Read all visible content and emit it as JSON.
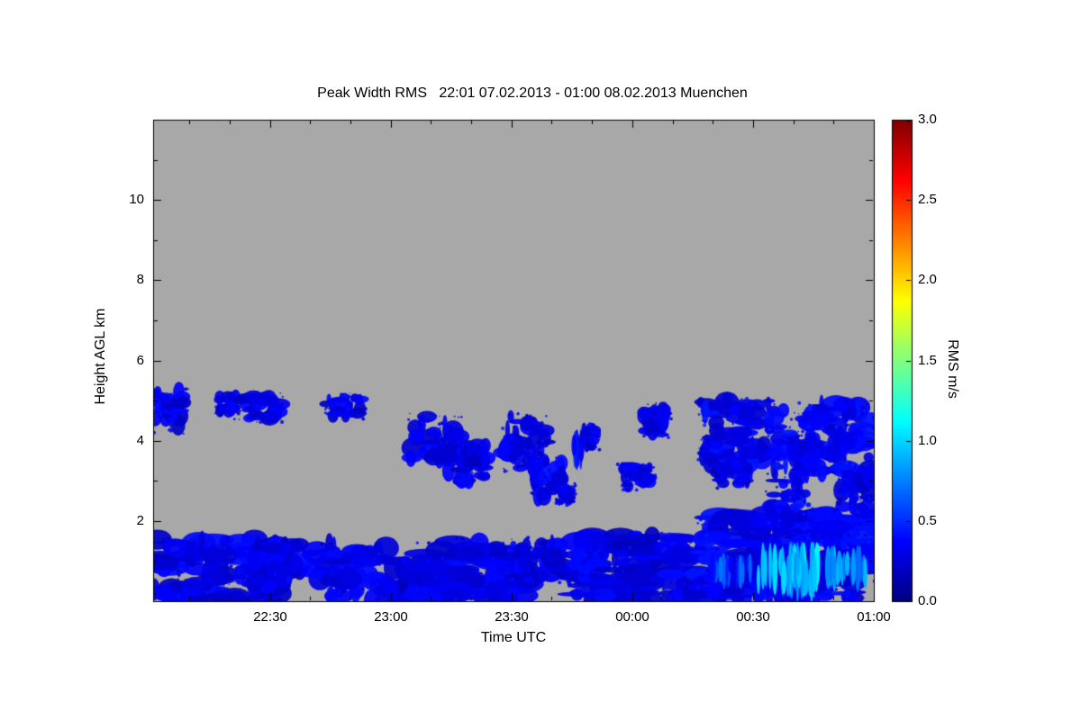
{
  "chart_data": {
    "type": "heatmap",
    "title": "Peak Width RMS   22:01 07.02.2013 - 01:00 08.02.2013 Muenchen",
    "xlabel": "Time UTC",
    "ylabel": "Height AGL km",
    "colorbar_label": "RMS m/s",
    "colormap": "jet",
    "value_units": "m/s",
    "value_range": [
      0.0,
      3.0
    ],
    "time_start": "22:01 07.02.2013",
    "time_end": "01:00 08.02.2013",
    "location": "Muenchen",
    "x_range_minutes": [
      0,
      179
    ],
    "y_range_km": [
      0,
      12
    ],
    "background_no_data_color": "#a8a8a8",
    "grid": false,
    "legend_position": "right-colorbar",
    "x_ticks": [
      {
        "label": "22:30",
        "minutes": 29
      },
      {
        "label": "23:00",
        "minutes": 59
      },
      {
        "label": "23:30",
        "minutes": 89
      },
      {
        "label": "00:00",
        "minutes": 119
      },
      {
        "label": "00:30",
        "minutes": 149
      },
      {
        "label": "01:00",
        "minutes": 179
      }
    ],
    "x_minor_tick_step_minutes": 10,
    "y_ticks": [
      {
        "label": "2",
        "km": 2
      },
      {
        "label": "4",
        "km": 4
      },
      {
        "label": "6",
        "km": 6
      },
      {
        "label": "8",
        "km": 8
      },
      {
        "label": "10",
        "km": 10
      }
    ],
    "y_minor_tick_step_km": 1,
    "colorbar_ticks": [
      {
        "label": "0.0",
        "value": 0.0
      },
      {
        "label": "0.5",
        "value": 0.5
      },
      {
        "label": "1.0",
        "value": 1.0
      },
      {
        "label": "1.5",
        "value": 1.5
      },
      {
        "label": "2.0",
        "value": 2.0
      },
      {
        "label": "2.5",
        "value": 2.5
      },
      {
        "label": "3.0",
        "value": 3.0
      }
    ],
    "features": [
      {
        "t0": 0,
        "t1": 31,
        "h0": 0.0,
        "h1": 1.55,
        "v": 0.3
      },
      {
        "t0": 29,
        "t1": 45,
        "h0": 0.5,
        "h1": 1.45,
        "v": 0.3
      },
      {
        "t0": 44,
        "t1": 60,
        "h0": 0.0,
        "h1": 1.35,
        "v": 0.3
      },
      {
        "t0": 59,
        "t1": 68,
        "h0": 0.0,
        "h1": 1.0,
        "v": 0.28
      },
      {
        "t0": 66,
        "t1": 93,
        "h0": 0.0,
        "h1": 1.5,
        "v": 0.3
      },
      {
        "t0": 92,
        "t1": 106,
        "h0": 0.45,
        "h1": 1.5,
        "v": 0.3
      },
      {
        "t0": 105,
        "t1": 136,
        "h0": 0.0,
        "h1": 1.65,
        "v": 0.3
      },
      {
        "t0": 135,
        "t1": 179,
        "h0": 0.0,
        "h1": 2.15,
        "v": 0.33
      },
      {
        "t0": 139,
        "t1": 149,
        "h0": 0.3,
        "h1": 1.2,
        "v": 0.55,
        "kind": "streaks"
      },
      {
        "t0": 150,
        "t1": 166,
        "h0": 0.1,
        "h1": 1.5,
        "v": 0.95,
        "kind": "streaks"
      },
      {
        "t0": 167,
        "t1": 177,
        "h0": 0.3,
        "h1": 1.4,
        "v": 0.85,
        "kind": "streaks"
      },
      {
        "t0": 0,
        "t1": 8,
        "h0": 4.25,
        "h1": 5.2,
        "v": 0.3
      },
      {
        "t0": 16,
        "t1": 21,
        "h0": 4.7,
        "h1": 5.15,
        "v": 0.3
      },
      {
        "t0": 21,
        "t1": 32,
        "h0": 4.55,
        "h1": 5.1,
        "v": 0.3
      },
      {
        "t0": 43,
        "t1": 52,
        "h0": 4.6,
        "h1": 5.1,
        "v": 0.3
      },
      {
        "t0": 64,
        "t1": 76,
        "h0": 3.55,
        "h1": 4.6,
        "v": 0.3
      },
      {
        "t0": 72,
        "t1": 83,
        "h0": 3.0,
        "h1": 3.9,
        "v": 0.3
      },
      {
        "t0": 87,
        "t1": 98,
        "h0": 3.3,
        "h1": 4.65,
        "v": 0.3
      },
      {
        "t0": 94,
        "t1": 102,
        "h0": 2.6,
        "h1": 3.5,
        "v": 0.3
      },
      {
        "t0": 101,
        "t1": 104,
        "h0": 2.45,
        "h1": 2.85,
        "v": 0.28
      },
      {
        "t0": 104,
        "t1": 107,
        "h0": 3.3,
        "h1": 4.3,
        "v": 0.3,
        "kind": "streaks"
      },
      {
        "t0": 107,
        "t1": 110,
        "h0": 3.85,
        "h1": 4.3,
        "v": 0.3
      },
      {
        "t0": 116,
        "t1": 124,
        "h0": 2.85,
        "h1": 3.35,
        "v": 0.3
      },
      {
        "t0": 122,
        "t1": 128,
        "h0": 4.15,
        "h1": 4.85,
        "v": 0.3
      },
      {
        "t0": 136,
        "t1": 153,
        "h0": 3.4,
        "h1": 5.0,
        "v": 0.33
      },
      {
        "t0": 140,
        "t1": 148,
        "h0": 2.9,
        "h1": 3.45,
        "v": 0.3
      },
      {
        "t0": 153,
        "t1": 163,
        "h0": 1.9,
        "h1": 4.9,
        "v": 0.33
      },
      {
        "t0": 162,
        "t1": 179,
        "h0": 3.2,
        "h1": 4.9,
        "v": 0.33
      },
      {
        "t0": 170,
        "t1": 179,
        "h0": 2.25,
        "h1": 3.3,
        "v": 0.3
      }
    ]
  }
}
